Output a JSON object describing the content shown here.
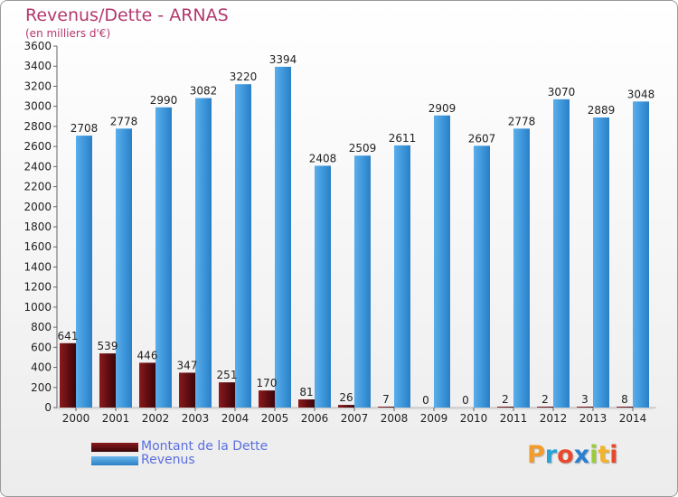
{
  "title": "Revenus/Dette - ARNAS",
  "subtitle": "(en milliers d'€)",
  "legend": [
    {
      "label": "Montant de la Dette",
      "color": "#6b0f12"
    },
    {
      "label": "Revenus",
      "color": "#4da3e6"
    }
  ],
  "brand": {
    "letters": [
      "P",
      "r",
      "o",
      "x",
      "i",
      "t",
      "i"
    ],
    "colors": [
      "#f39c2b",
      "#27a3d8",
      "#e8482c",
      "#2a7fd0",
      "#9ccc3b",
      "#f3b32b",
      "#e8482c"
    ]
  },
  "chart_data": {
    "type": "bar",
    "categories": [
      "2000",
      "2001",
      "2002",
      "2003",
      "2004",
      "2005",
      "2006",
      "2007",
      "2008",
      "2009",
      "2010",
      "2011",
      "2012",
      "2013",
      "2014"
    ],
    "series": [
      {
        "name": "Montant de la Dette",
        "values": [
          641,
          539,
          446,
          347,
          251,
          170,
          81,
          26,
          7,
          0,
          0,
          2,
          2,
          3,
          8
        ],
        "labels": [
          "641",
          "539",
          "446",
          "347",
          "251",
          "170",
          "81",
          "26",
          "7",
          "0",
          "0",
          "2",
          "2",
          "3",
          "8"
        ]
      },
      {
        "name": "Revenus",
        "values": [
          2708,
          2778,
          2990,
          3082,
          3220,
          3394,
          2408,
          2509,
          2611,
          2909,
          2607,
          2778,
          3070,
          2889,
          3048
        ],
        "labels": [
          "2708",
          "2778",
          "2990",
          "3082",
          "3220",
          "3394",
          "2408",
          "2509",
          "2611",
          "2909",
          "2607",
          "2778",
          "3070",
          "2889",
          "3048"
        ]
      }
    ],
    "yticks": [
      "0",
      "200",
      "400",
      "600",
      "800",
      "1000",
      "1200",
      "1400",
      "1600",
      "1800",
      "2000",
      "2200",
      "2400",
      "2600",
      "2800",
      "3000",
      "3200",
      "3400",
      "3600"
    ],
    "ylim": [
      0,
      3600
    ],
    "grid": false,
    "legend_position": "bottom-left"
  }
}
